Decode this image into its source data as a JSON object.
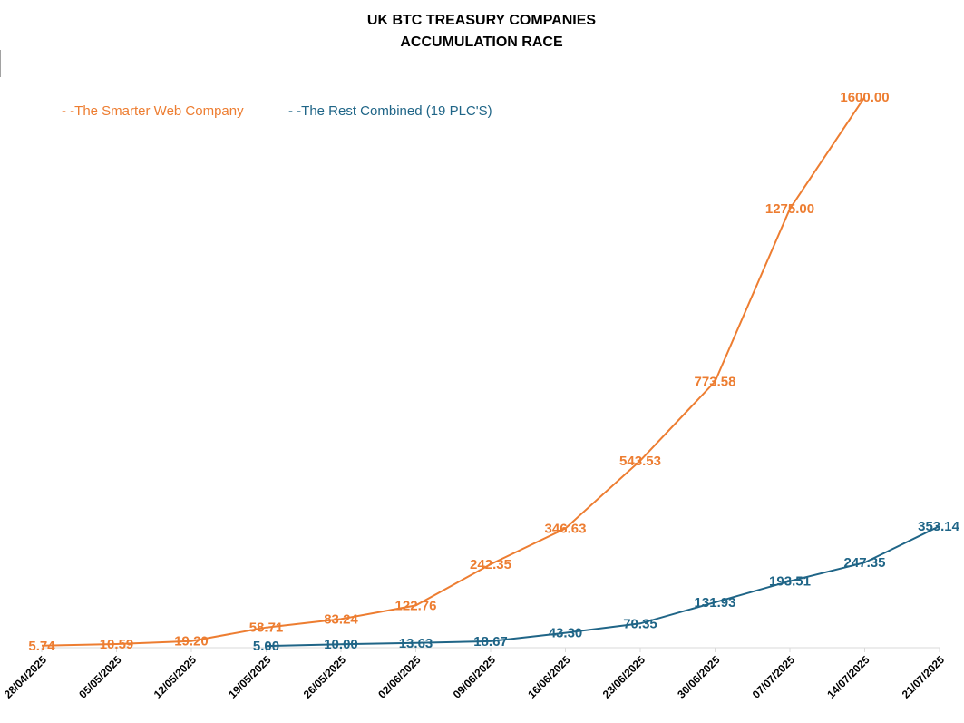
{
  "chart_data": {
    "type": "line",
    "title_lines": [
      "UK BTC TREASURY COMPANIES",
      "ACCUMULATION RACE"
    ],
    "categories": [
      "28/04/2025",
      "05/05/2025",
      "12/05/2025",
      "19/05/2025",
      "26/05/2025",
      "02/06/2025",
      "09/06/2025",
      "16/06/2025",
      "23/06/2025",
      "30/06/2025",
      "07/07/2025",
      "14/07/2025",
      "21/07/2025"
    ],
    "ylim": [
      0,
      1750
    ],
    "grid": false,
    "legend_position": "top-left",
    "series": [
      {
        "name": "The Smarter Web Company",
        "legend_label": "- -The Smarter Web Company",
        "color": "#ED7D31",
        "values": [
          5.74,
          10.59,
          19.2,
          58.71,
          83.24,
          122.76,
          242.35,
          346.63,
          543.53,
          773.58,
          1275.0,
          1600.0,
          null
        ],
        "labels": [
          "5.74",
          "10.59",
          "19.20",
          "58.71",
          "83.24",
          "122.76",
          "242.35",
          "346.63",
          "543.53",
          "773.58",
          "1275.00",
          "1600.00",
          ""
        ]
      },
      {
        "name": "The Rest Combined (19 PLC'S)",
        "legend_label": "- -The Rest Combined (19 PLC'S)",
        "color": "#1F6587",
        "values": [
          null,
          null,
          null,
          5.0,
          10.0,
          13.63,
          18.67,
          43.3,
          70.35,
          131.93,
          193.51,
          247.35,
          353.14
        ],
        "labels": [
          "",
          "",
          "",
          "5.00",
          "10.00",
          "13.63",
          "18.67",
          "43.30",
          "70.35",
          "131.93",
          "193.51",
          "247.35",
          "353.14"
        ]
      }
    ]
  }
}
